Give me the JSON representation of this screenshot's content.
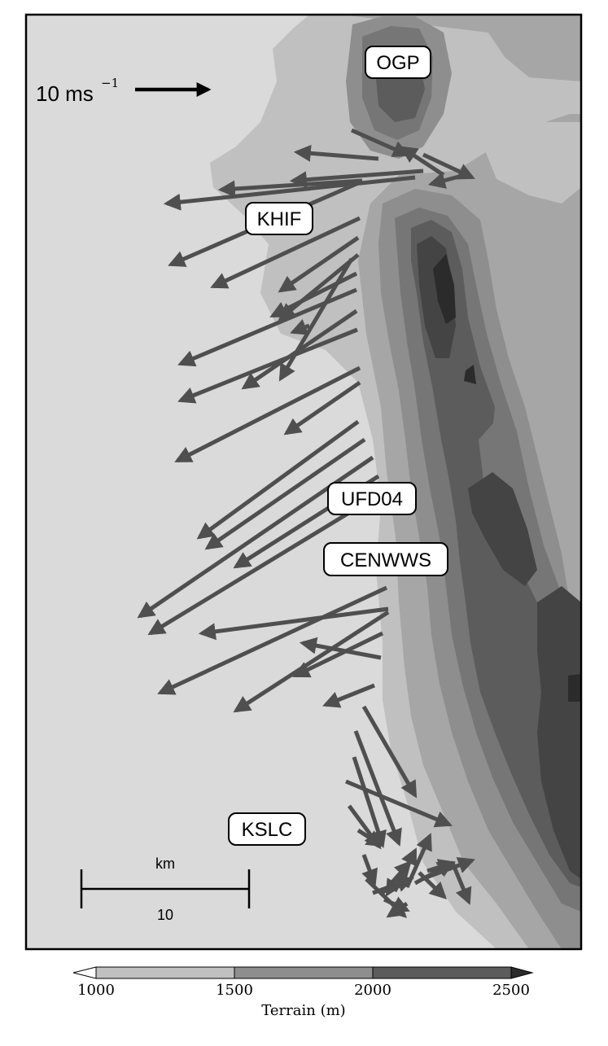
{
  "reference_vector": {
    "label": "10 ms",
    "exponent": "−1",
    "speed_ms": 10
  },
  "stations": [
    {
      "id": "OGP",
      "label": "OGP"
    },
    {
      "id": "KHIF",
      "label": "KHIF"
    },
    {
      "id": "UFD04",
      "label": "UFD04"
    },
    {
      "id": "CENWWS",
      "label": "CENWWS"
    },
    {
      "id": "KSLC",
      "label": "KSLC"
    }
  ],
  "scale_bar": {
    "unit": "km",
    "length_label": "10"
  },
  "colorbar": {
    "label": "Terrain (m)",
    "ticks": [
      "1000",
      "1500",
      "2000",
      "2500"
    ],
    "levels": [
      {
        "range": [
          1000,
          1500
        ],
        "color": "#c0c0c0"
      },
      {
        "range": [
          1500,
          2000
        ],
        "color": "#8e8e8e"
      },
      {
        "range": [
          2000,
          2500
        ],
        "color": "#5c5c5c"
      }
    ],
    "under_color": "#ffffff",
    "over_color": "#2b2b2b",
    "extend": "both"
  },
  "terrain_colors": {
    "background": "#dadada",
    "level_1": "#c0c0c0",
    "level_2": "#a6a6a6",
    "level_3": "#8e8e8e",
    "level_4": "#767676",
    "level_5": "#5c5c5c",
    "level_6": "#444444",
    "level_7": "#2b2b2b"
  },
  "vector_color": "#4f4f4f"
}
